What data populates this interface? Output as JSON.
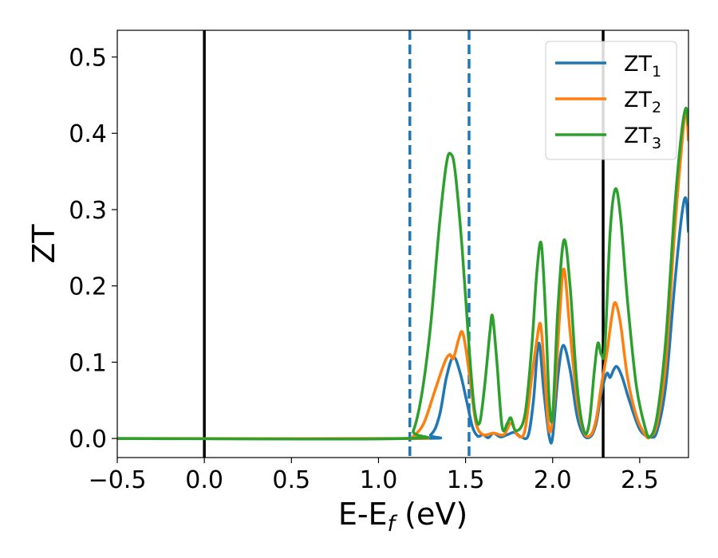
{
  "chart_data": {
    "type": "line",
    "title": "",
    "xlabel": {
      "main": "E-E",
      "sub": "f",
      "tail": " (eV)"
    },
    "ylabel": "ZT",
    "xlim": [
      -0.5,
      2.78
    ],
    "ylim": [
      -0.025,
      0.535
    ],
    "xticks": [
      {
        "value": -0.5,
        "label": "−0.5"
      },
      {
        "value": 0.0,
        "label": "0.0"
      },
      {
        "value": 0.5,
        "label": "0.5"
      },
      {
        "value": 1.0,
        "label": "1.0"
      },
      {
        "value": 1.5,
        "label": "1.5"
      },
      {
        "value": 2.0,
        "label": "2.0"
      },
      {
        "value": 2.5,
        "label": "2.5"
      }
    ],
    "yticks": [
      {
        "value": 0.0,
        "label": "0.0"
      },
      {
        "value": 0.1,
        "label": "0.1"
      },
      {
        "value": 0.2,
        "label": "0.2"
      },
      {
        "value": 0.3,
        "label": "0.3"
      },
      {
        "value": 0.4,
        "label": "0.4"
      },
      {
        "value": 0.5,
        "label": "0.5"
      }
    ],
    "grid": false,
    "legend_position": "top-right",
    "vlines": [
      {
        "x": 0.0,
        "style": "solid",
        "color": "#000000"
      },
      {
        "x": 1.18,
        "style": "dashed",
        "color": "#1f77b4"
      },
      {
        "x": 1.52,
        "style": "dashed",
        "color": "#1f77b4"
      },
      {
        "x": 2.29,
        "style": "solid",
        "color": "#000000"
      }
    ],
    "series": [
      {
        "name": "ZT",
        "sub": "1",
        "color": "#1f77b4",
        "points": [
          [
            -0.5,
            0
          ],
          [
            1.2,
            0
          ],
          [
            1.3,
            0.005
          ],
          [
            1.35,
            0.03
          ],
          [
            1.39,
            0.08
          ],
          [
            1.43,
            0.107
          ],
          [
            1.47,
            0.085
          ],
          [
            1.51,
            0.045
          ],
          [
            1.54,
            0.015
          ],
          [
            1.57,
            0.003
          ],
          [
            1.6,
            0.005
          ],
          [
            1.63,
            0.001
          ],
          [
            1.66,
            0.007
          ],
          [
            1.7,
            0.002
          ],
          [
            1.74,
            0.005
          ],
          [
            1.78,
            0.008
          ],
          [
            1.82,
            0.002
          ],
          [
            1.86,
            0.004
          ],
          [
            1.89,
            0.05
          ],
          [
            1.92,
            0.125
          ],
          [
            1.95,
            0.06
          ],
          [
            1.98,
            0.003
          ],
          [
            2.0,
            0.002
          ],
          [
            2.03,
            0.08
          ],
          [
            2.06,
            0.122
          ],
          [
            2.1,
            0.09
          ],
          [
            2.14,
            0.03
          ],
          [
            2.18,
            0.004
          ],
          [
            2.22,
            0.003
          ],
          [
            2.25,
            0.02
          ],
          [
            2.28,
            0.06
          ],
          [
            2.31,
            0.085
          ],
          [
            2.33,
            0.08
          ],
          [
            2.35,
            0.09
          ],
          [
            2.37,
            0.094
          ],
          [
            2.4,
            0.08
          ],
          [
            2.44,
            0.05
          ],
          [
            2.5,
            0.012
          ],
          [
            2.56,
            0.002
          ],
          [
            2.6,
            0.01
          ],
          [
            2.65,
            0.07
          ],
          [
            2.7,
            0.2
          ],
          [
            2.74,
            0.29
          ],
          [
            2.765,
            0.315
          ],
          [
            2.78,
            0.27
          ]
        ]
      },
      {
        "name": "ZT",
        "sub": "2",
        "color": "#ff7f0e",
        "points": [
          [
            -0.5,
            0
          ],
          [
            1.15,
            0
          ],
          [
            1.2,
            0.003
          ],
          [
            1.26,
            0.02
          ],
          [
            1.32,
            0.06
          ],
          [
            1.38,
            0.1
          ],
          [
            1.41,
            0.11
          ],
          [
            1.43,
            0.105
          ],
          [
            1.46,
            0.13
          ],
          [
            1.48,
            0.14
          ],
          [
            1.5,
            0.12
          ],
          [
            1.53,
            0.07
          ],
          [
            1.56,
            0.02
          ],
          [
            1.6,
            0.005
          ],
          [
            1.66,
            0.007
          ],
          [
            1.72,
            0.005
          ],
          [
            1.76,
            0.02
          ],
          [
            1.8,
            0.004
          ],
          [
            1.84,
            0.01
          ],
          [
            1.88,
            0.08
          ],
          [
            1.91,
            0.13
          ],
          [
            1.93,
            0.15
          ],
          [
            1.95,
            0.1
          ],
          [
            1.98,
            0.01
          ],
          [
            2.01,
            0.05
          ],
          [
            2.04,
            0.16
          ],
          [
            2.065,
            0.222
          ],
          [
            2.1,
            0.14
          ],
          [
            2.14,
            0.05
          ],
          [
            2.18,
            0.008
          ],
          [
            2.22,
            0.005
          ],
          [
            2.25,
            0.025
          ],
          [
            2.28,
            0.07
          ],
          [
            2.31,
            0.11
          ],
          [
            2.34,
            0.16
          ],
          [
            2.36,
            0.178
          ],
          [
            2.39,
            0.15
          ],
          [
            2.43,
            0.08
          ],
          [
            2.48,
            0.03
          ],
          [
            2.53,
            0.005
          ],
          [
            2.56,
            0.002
          ],
          [
            2.6,
            0.02
          ],
          [
            2.65,
            0.1
          ],
          [
            2.7,
            0.27
          ],
          [
            2.74,
            0.38
          ],
          [
            2.765,
            0.43
          ],
          [
            2.78,
            0.39
          ]
        ]
      },
      {
        "name": "ZT",
        "sub": "3",
        "color": "#2ca02c",
        "points": [
          [
            -0.5,
            0
          ],
          [
            1.15,
            0
          ],
          [
            1.2,
            0.01
          ],
          [
            1.25,
            0.06
          ],
          [
            1.3,
            0.15
          ],
          [
            1.35,
            0.28
          ],
          [
            1.39,
            0.36
          ],
          [
            1.415,
            0.373
          ],
          [
            1.44,
            0.35
          ],
          [
            1.48,
            0.25
          ],
          [
            1.52,
            0.12
          ],
          [
            1.55,
            0.04
          ],
          [
            1.58,
            0.02
          ],
          [
            1.61,
            0.07
          ],
          [
            1.64,
            0.14
          ],
          [
            1.655,
            0.16
          ],
          [
            1.68,
            0.1
          ],
          [
            1.71,
            0.015
          ],
          [
            1.74,
            0.02
          ],
          [
            1.76,
            0.027
          ],
          [
            1.79,
            0.01
          ],
          [
            1.84,
            0.03
          ],
          [
            1.88,
            0.12
          ],
          [
            1.91,
            0.22
          ],
          [
            1.935,
            0.255
          ],
          [
            1.96,
            0.16
          ],
          [
            1.98,
            0.05
          ],
          [
            2.0,
            0.03
          ],
          [
            2.03,
            0.17
          ],
          [
            2.065,
            0.26
          ],
          [
            2.1,
            0.2
          ],
          [
            2.14,
            0.07
          ],
          [
            2.18,
            0.01
          ],
          [
            2.21,
            0.02
          ],
          [
            2.24,
            0.09
          ],
          [
            2.26,
            0.125
          ],
          [
            2.28,
            0.11
          ],
          [
            2.3,
            0.12
          ],
          [
            2.33,
            0.27
          ],
          [
            2.36,
            0.327
          ],
          [
            2.39,
            0.29
          ],
          [
            2.43,
            0.18
          ],
          [
            2.48,
            0.07
          ],
          [
            2.53,
            0.015
          ],
          [
            2.56,
            0.002
          ],
          [
            2.6,
            0.03
          ],
          [
            2.65,
            0.13
          ],
          [
            2.7,
            0.3
          ],
          [
            2.74,
            0.4
          ],
          [
            2.765,
            0.433
          ],
          [
            2.78,
            0.41
          ]
        ]
      }
    ]
  }
}
